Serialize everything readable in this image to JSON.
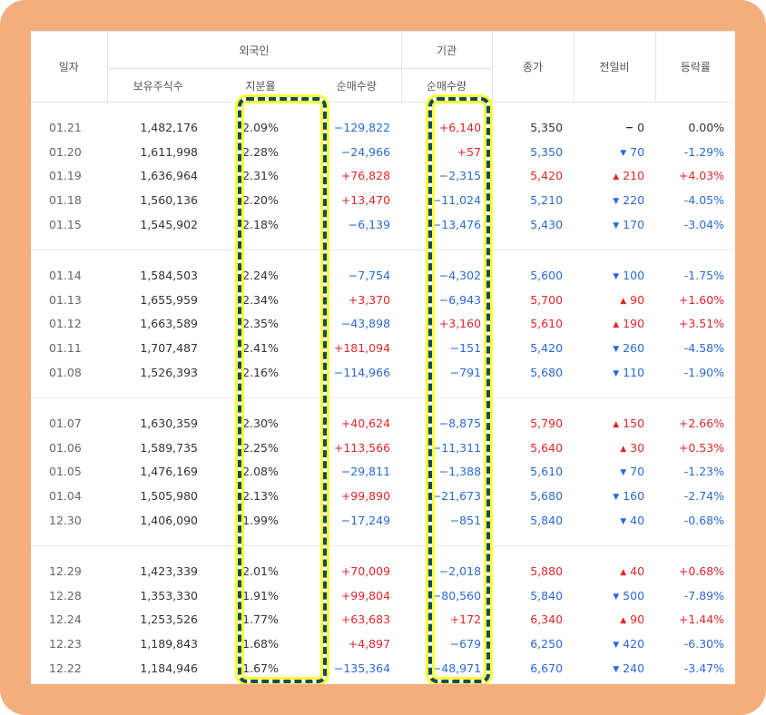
{
  "header": {
    "date": "일자",
    "foreign": "외국인",
    "institution": "기관",
    "close": "종가",
    "change": "전일비",
    "rate": "등락률",
    "holdings": "보유주식수",
    "share": "지분율",
    "foreign_net": "순매수량",
    "inst_net": "순매수량"
  },
  "colors": {
    "up": "#e3262b",
    "down": "#2a6ad6",
    "frame": "#f3ae7e",
    "highlight": "#ffff33",
    "dash": "#0f4c5c"
  },
  "groups": [
    {
      "rows": [
        {
          "date": "01.21",
          "holdings": "1,482,176",
          "share": "2.09%",
          "foreign_net": "−129,822",
          "inst_net": "+6,140",
          "close": "5,350",
          "change": "0",
          "dir": "flat",
          "rate": "0.00%"
        },
        {
          "date": "01.20",
          "holdings": "1,611,998",
          "share": "2.28%",
          "foreign_net": "−24,966",
          "inst_net": "+57",
          "close": "5,350",
          "change": "70",
          "dir": "down",
          "rate": "-1.29%"
        },
        {
          "date": "01.19",
          "holdings": "1,636,964",
          "share": "2.31%",
          "foreign_net": "+76,828",
          "inst_net": "−2,315",
          "close": "5,420",
          "change": "210",
          "dir": "up",
          "rate": "+4.03%"
        },
        {
          "date": "01.18",
          "holdings": "1,560,136",
          "share": "2.20%",
          "foreign_net": "+13,470",
          "inst_net": "−11,024",
          "close": "5,210",
          "change": "220",
          "dir": "down",
          "rate": "-4.05%"
        },
        {
          "date": "01.15",
          "holdings": "1,545,902",
          "share": "2.18%",
          "foreign_net": "−6,139",
          "inst_net": "−13,476",
          "close": "5,430",
          "change": "170",
          "dir": "down",
          "rate": "-3.04%"
        }
      ]
    },
    {
      "rows": [
        {
          "date": "01.14",
          "holdings": "1,584,503",
          "share": "2.24%",
          "foreign_net": "−7,754",
          "inst_net": "−4,302",
          "close": "5,600",
          "change": "100",
          "dir": "down",
          "rate": "-1.75%"
        },
        {
          "date": "01.13",
          "holdings": "1,655,959",
          "share": "2.34%",
          "foreign_net": "+3,370",
          "inst_net": "−6,943",
          "close": "5,700",
          "change": "90",
          "dir": "up",
          "rate": "+1.60%"
        },
        {
          "date": "01.12",
          "holdings": "1,663,589",
          "share": "2.35%",
          "foreign_net": "−43,898",
          "inst_net": "+3,160",
          "close": "5,610",
          "change": "190",
          "dir": "up",
          "rate": "+3.51%"
        },
        {
          "date": "01.11",
          "holdings": "1,707,487",
          "share": "2.41%",
          "foreign_net": "+181,094",
          "inst_net": "−151",
          "close": "5,420",
          "change": "260",
          "dir": "down",
          "rate": "-4.58%"
        },
        {
          "date": "01.08",
          "holdings": "1,526,393",
          "share": "2.16%",
          "foreign_net": "−114,966",
          "inst_net": "−791",
          "close": "5,680",
          "change": "110",
          "dir": "down",
          "rate": "-1.90%"
        }
      ]
    },
    {
      "rows": [
        {
          "date": "01.07",
          "holdings": "1,630,359",
          "share": "2.30%",
          "foreign_net": "+40,624",
          "inst_net": "−8,875",
          "close": "5,790",
          "change": "150",
          "dir": "up",
          "rate": "+2.66%"
        },
        {
          "date": "01.06",
          "holdings": "1,589,735",
          "share": "2.25%",
          "foreign_net": "+113,566",
          "inst_net": "−11,311",
          "close": "5,640",
          "change": "30",
          "dir": "up",
          "rate": "+0.53%"
        },
        {
          "date": "01.05",
          "holdings": "1,476,169",
          "share": "2.08%",
          "foreign_net": "−29,811",
          "inst_net": "−1,388",
          "close": "5,610",
          "change": "70",
          "dir": "down",
          "rate": "-1.23%"
        },
        {
          "date": "01.04",
          "holdings": "1,505,980",
          "share": "2.13%",
          "foreign_net": "+99,890",
          "inst_net": "−21,673",
          "close": "5,680",
          "change": "160",
          "dir": "down",
          "rate": "-2.74%"
        },
        {
          "date": "12.30",
          "holdings": "1,406,090",
          "share": "1.99%",
          "foreign_net": "−17,249",
          "inst_net": "−851",
          "close": "5,840",
          "change": "40",
          "dir": "down",
          "rate": "-0.68%"
        }
      ]
    },
    {
      "rows": [
        {
          "date": "12.29",
          "holdings": "1,423,339",
          "share": "2.01%",
          "foreign_net": "+70,009",
          "inst_net": "−2,018",
          "close": "5,880",
          "change": "40",
          "dir": "up",
          "rate": "+0.68%"
        },
        {
          "date": "12.28",
          "holdings": "1,353,330",
          "share": "1.91%",
          "foreign_net": "+99,804",
          "inst_net": "−80,560",
          "close": "5,840",
          "change": "500",
          "dir": "down",
          "rate": "-7.89%"
        },
        {
          "date": "12.24",
          "holdings": "1,253,526",
          "share": "1.77%",
          "foreign_net": "+63,683",
          "inst_net": "+172",
          "close": "6,340",
          "change": "90",
          "dir": "up",
          "rate": "+1.44%"
        },
        {
          "date": "12.23",
          "holdings": "1,189,843",
          "share": "1.68%",
          "foreign_net": "+4,897",
          "inst_net": "−679",
          "close": "6,250",
          "change": "420",
          "dir": "down",
          "rate": "-6.30%"
        },
        {
          "date": "12.22",
          "holdings": "1,184,946",
          "share": "1.67%",
          "foreign_net": "−135,364",
          "inst_net": "−48,971",
          "close": "6,670",
          "change": "240",
          "dir": "down",
          "rate": "-3.47%"
        }
      ]
    }
  ]
}
